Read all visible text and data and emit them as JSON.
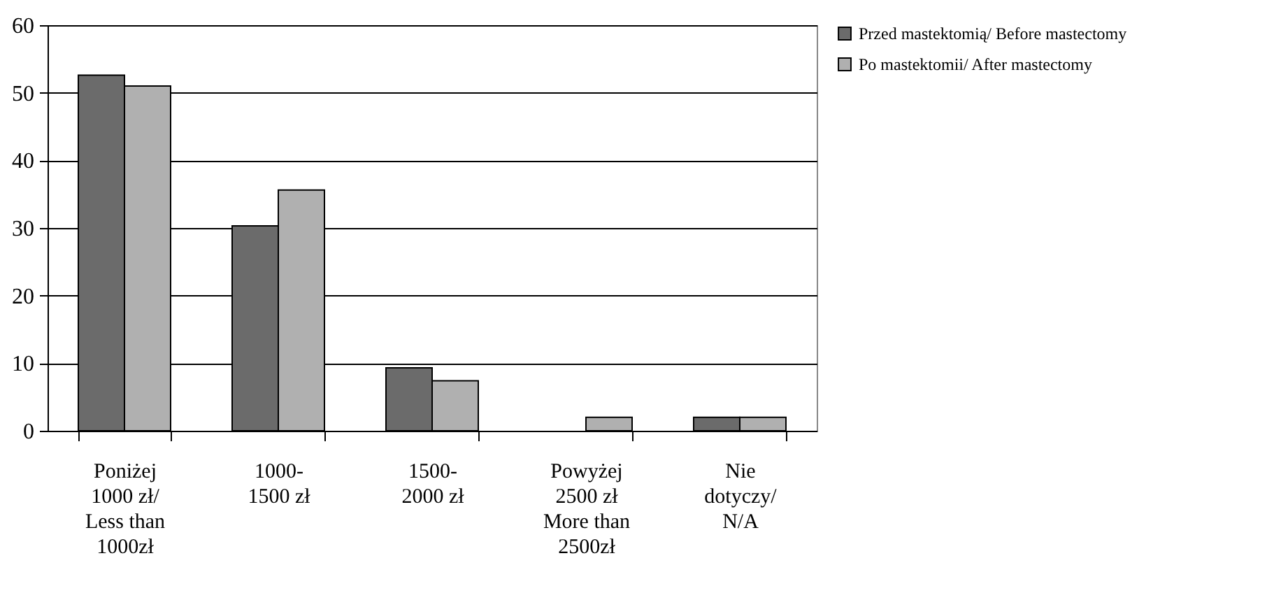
{
  "chart_data": {
    "type": "bar",
    "categories": [
      "Poniżej\n1000 zł/\nLess than\n1000zł",
      "1000-\n1500 zł",
      "1500-\n2000 zł",
      "Powyżej\n2500 zł\nMore than\n2500zł",
      "Nie\ndotyczy/\nN/A"
    ],
    "series": [
      {
        "name": "Przed mastektomią/ Before mastectomy",
        "color": "#6b6b6b",
        "values": [
          52.6,
          30.3,
          9.3,
          null,
          2
        ]
      },
      {
        "name": "Po mastektomii/ After mastectomy",
        "color": "#b0b0b0",
        "values": [
          51,
          35.6,
          7.4,
          2,
          2
        ]
      }
    ],
    "ylim": [
      0,
      60
    ],
    "yticks": [
      0,
      10,
      20,
      30,
      40,
      50,
      60
    ],
    "grid": "y",
    "legend": "right"
  }
}
